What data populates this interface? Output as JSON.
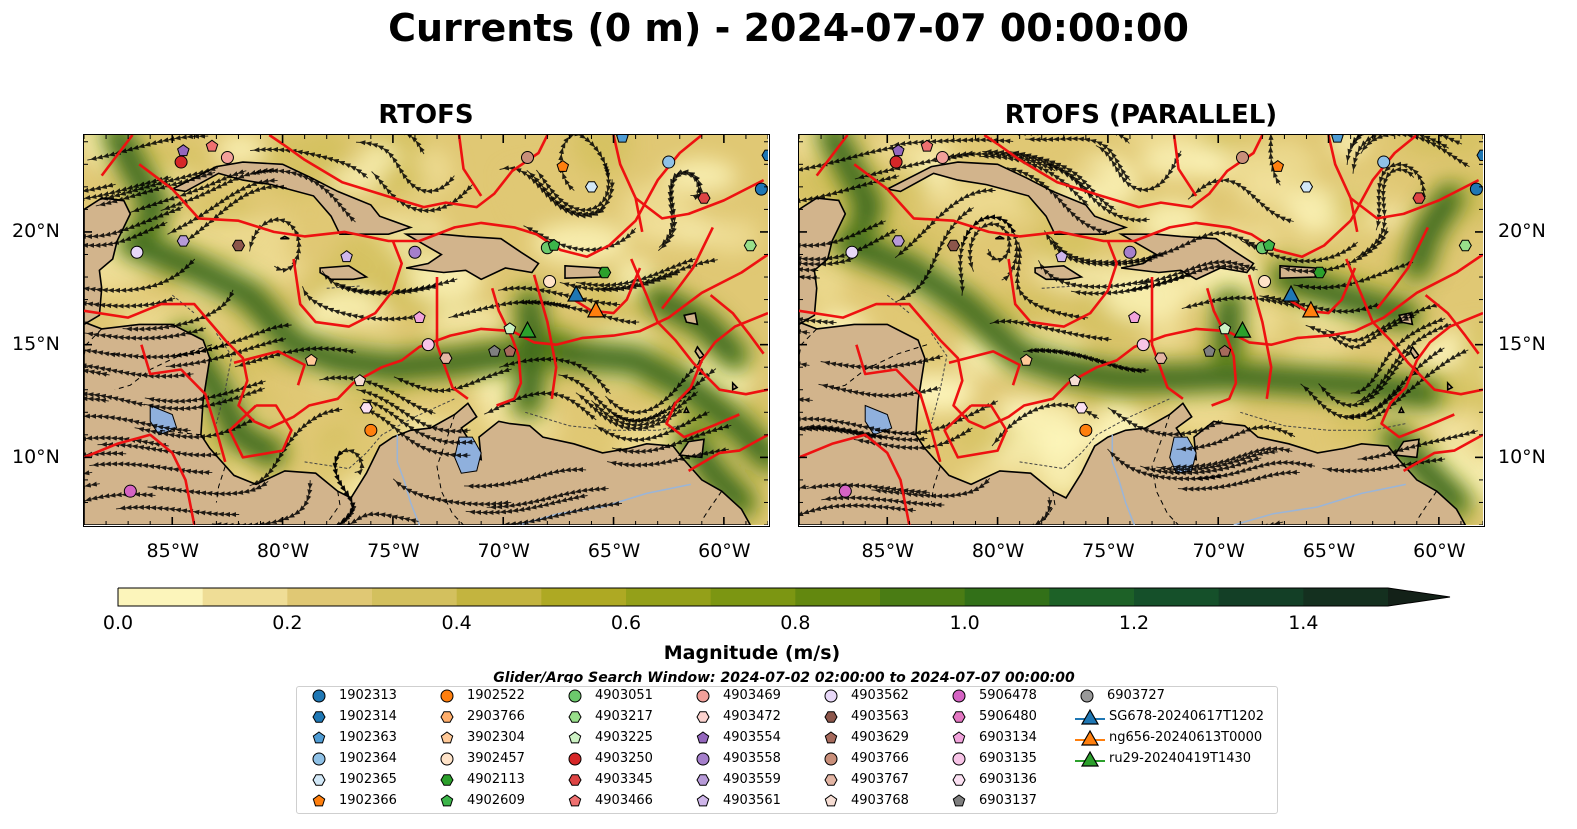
{
  "title": "Currents (0 m) - 2024-07-07 00:00:00",
  "panels": [
    {
      "title": "RTOFS"
    },
    {
      "title": "RTOFS (PARALLEL)"
    }
  ],
  "axes": {
    "lon_labels": [
      "85°W",
      "80°W",
      "75°W",
      "70°W",
      "65°W",
      "60°W"
    ],
    "lat_labels": [
      "20°N",
      "15°N",
      "10°N"
    ],
    "lon_range": [
      -89,
      -58
    ],
    "lat_range": [
      7,
      24.3
    ]
  },
  "colorbar": {
    "label": "Magnitude (m/s)",
    "min": 0.0,
    "max": 1.5,
    "step": 0.1,
    "extend": "max",
    "tick_labels": [
      "0.0",
      "0.2",
      "0.4",
      "0.6",
      "0.8",
      "1.0",
      "1.2",
      "1.4"
    ],
    "colors": [
      "#fcf5bb",
      "#efdd96",
      "#e0c874",
      "#d3c05e",
      "#c3b43f",
      "#aea923",
      "#94a019",
      "#7c9612",
      "#63880f",
      "#4a7c14",
      "#327018",
      "#1d6127",
      "#15502a",
      "#133f26",
      "#14301f",
      "#132118"
    ]
  },
  "search_window": "Glider/Argo Search Window: 2024-07-02 02:00:00 to 2024-07-07 00:00:00",
  "legend": [
    {
      "label": "1902313",
      "marker": "circle",
      "color": "#1f77b4"
    },
    {
      "label": "1902314",
      "marker": "hexagon",
      "color": "#1f77b4"
    },
    {
      "label": "1902363",
      "marker": "pentagon",
      "color": "#4f9cd4"
    },
    {
      "label": "1902364",
      "marker": "circle",
      "color": "#8fc1e6"
    },
    {
      "label": "1902365",
      "marker": "hexagon",
      "color": "#d2e8f7"
    },
    {
      "label": "1902366",
      "marker": "pentagon",
      "color": "#ff7f0e"
    },
    {
      "label": "1902522",
      "marker": "circle",
      "color": "#ff7f0e"
    },
    {
      "label": "2903766",
      "marker": "hexagon",
      "color": "#ffae6b"
    },
    {
      "label": "3902304",
      "marker": "pentagon",
      "color": "#ffc998"
    },
    {
      "label": "3902457",
      "marker": "circle",
      "color": "#ffe3c8"
    },
    {
      "label": "4902113",
      "marker": "hexagon",
      "color": "#2ca02c"
    },
    {
      "label": "4902609",
      "marker": "pentagon",
      "color": "#3cb54a"
    },
    {
      "label": "4903051",
      "marker": "circle",
      "color": "#6cc96c"
    },
    {
      "label": "4903217",
      "marker": "hexagon",
      "color": "#98df8a"
    },
    {
      "label": "4903225",
      "marker": "pentagon",
      "color": "#cdf2c4"
    },
    {
      "label": "4903250",
      "marker": "circle",
      "color": "#d62728"
    },
    {
      "label": "4903345",
      "marker": "hexagon",
      "color": "#dd4444"
    },
    {
      "label": "4903466",
      "marker": "pentagon",
      "color": "#ef7070"
    },
    {
      "label": "4903469",
      "marker": "circle",
      "color": "#f2a09a"
    },
    {
      "label": "4903472",
      "marker": "hexagon",
      "color": "#fcd3cf"
    },
    {
      "label": "4903554",
      "marker": "pentagon",
      "color": "#9467bd"
    },
    {
      "label": "4903558",
      "marker": "circle",
      "color": "#a57fcb"
    },
    {
      "label": "4903559",
      "marker": "hexagon",
      "color": "#b79ad8"
    },
    {
      "label": "4903561",
      "marker": "pentagon",
      "color": "#cfb6ea"
    },
    {
      "label": "4903562",
      "marker": "circle",
      "color": "#e8d8f8"
    },
    {
      "label": "4903563",
      "marker": "hexagon",
      "color": "#8c564b"
    },
    {
      "label": "4903629",
      "marker": "pentagon",
      "color": "#a66a5c"
    },
    {
      "label": "4903766",
      "marker": "circle",
      "color": "#c98f7a"
    },
    {
      "label": "4903767",
      "marker": "hexagon",
      "color": "#e3b5a4"
    },
    {
      "label": "4903768",
      "marker": "pentagon",
      "color": "#f6ddd3"
    },
    {
      "label": "5906478",
      "marker": "circle",
      "color": "#d563c3"
    },
    {
      "label": "5906480",
      "marker": "hexagon",
      "color": "#e377c2"
    },
    {
      "label": "6903134",
      "marker": "pentagon",
      "color": "#f1a3dc"
    },
    {
      "label": "6903135",
      "marker": "circle",
      "color": "#f7c4e7"
    },
    {
      "label": "6903136",
      "marker": "hexagon",
      "color": "#fbe0f2"
    },
    {
      "label": "6903137",
      "marker": "pentagon",
      "color": "#7f7f7f"
    },
    {
      "label": "6903727",
      "marker": "circle",
      "color": "#999999"
    },
    {
      "label": "SG678-20240617T1202",
      "marker": "triangle-line",
      "color": "#1f77b4"
    },
    {
      "label": "ng656-20240613T0000",
      "marker": "triangle-line",
      "color": "#ff7f0e"
    },
    {
      "label": "ru29-20240419T1430",
      "marker": "triangle-line",
      "color": "#2ca02c"
    }
  ],
  "floats_on_map": [
    {
      "id": "4903554",
      "lon": -84.5,
      "lat": 23.6
    },
    {
      "id": "4903250",
      "lon": -84.6,
      "lat": 23.1
    },
    {
      "id": "4903466",
      "lon": -83.2,
      "lat": 23.8
    },
    {
      "id": "4903469",
      "lon": -82.5,
      "lat": 23.3
    },
    {
      "id": "4903766",
      "lon": -68.9,
      "lat": 23.3
    },
    {
      "id": "1902366",
      "lon": -67.3,
      "lat": 22.9
    },
    {
      "id": "1902363",
      "lon": -64.6,
      "lat": 24.2
    },
    {
      "id": "1902364",
      "lon": -62.5,
      "lat": 23.1
    },
    {
      "id": "1902365",
      "lon": -66.0,
      "lat": 22.0
    },
    {
      "id": "1902314",
      "lon": -58.0,
      "lat": 23.4
    },
    {
      "id": "1902313",
      "lon": -58.3,
      "lat": 21.9
    },
    {
      "id": "4903345",
      "lon": -60.9,
      "lat": 21.5
    },
    {
      "id": "4903217",
      "lon": -58.8,
      "lat": 19.4
    },
    {
      "id": "4903051",
      "lon": -68.0,
      "lat": 19.3
    },
    {
      "id": "4902609",
      "lon": -67.7,
      "lat": 19.4
    },
    {
      "id": "4902113",
      "lon": -65.4,
      "lat": 18.2
    },
    {
      "id": "3902457",
      "lon": -67.9,
      "lat": 17.8
    },
    {
      "id": "4903559",
      "lon": -84.5,
      "lat": 19.6
    },
    {
      "id": "4903562",
      "lon": -86.6,
      "lat": 19.1
    },
    {
      "id": "4903563",
      "lon": -82.0,
      "lat": 19.4
    },
    {
      "id": "4903561",
      "lon": -77.1,
      "lat": 18.9
    },
    {
      "id": "4903558",
      "lon": -74.0,
      "lat": 19.1
    },
    {
      "id": "6903134",
      "lon": -73.8,
      "lat": 16.2
    },
    {
      "id": "6903135",
      "lon": -73.4,
      "lat": 15.0
    },
    {
      "id": "4903767",
      "lon": -72.6,
      "lat": 14.4
    },
    {
      "id": "4903225",
      "lon": -69.7,
      "lat": 15.7
    },
    {
      "id": "6903137",
      "lon": -70.4,
      "lat": 14.7
    },
    {
      "id": "4903629",
      "lon": -69.7,
      "lat": 14.7
    },
    {
      "id": "3902304",
      "lon": -78.7,
      "lat": 14.3
    },
    {
      "id": "4903768",
      "lon": -76.5,
      "lat": 13.4
    },
    {
      "id": "6903136",
      "lon": -76.2,
      "lat": 12.2
    },
    {
      "id": "1902522",
      "lon": -76.0,
      "lat": 11.2
    },
    {
      "id": "5906478",
      "lon": -86.9,
      "lat": 8.5
    }
  ],
  "gliders_on_map": [
    {
      "id": "SG678-20240617T1202",
      "lon": -66.7,
      "lat": 17.2
    },
    {
      "id": "ng656-20240613T0000",
      "lon": -65.8,
      "lat": 16.5
    },
    {
      "id": "ru29-20240419T1430",
      "lon": -68.9,
      "lat": 15.6
    }
  ]
}
